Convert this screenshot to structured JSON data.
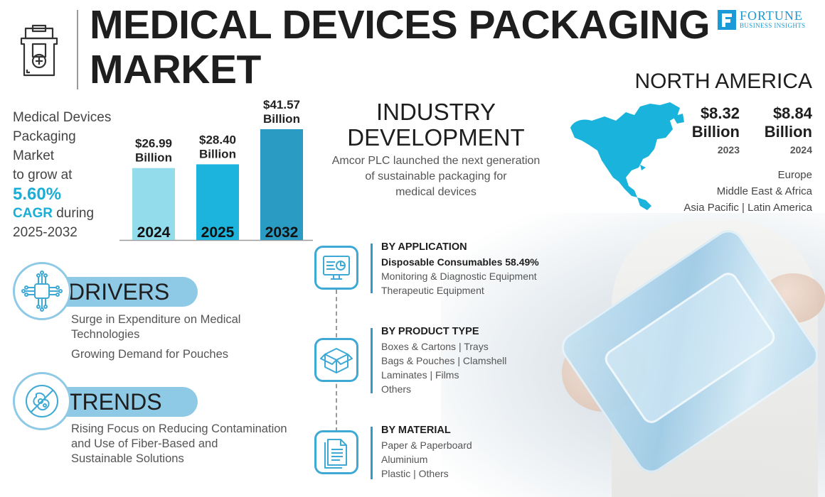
{
  "header": {
    "title_line1": "MEDICAL DEVICES PACKAGING",
    "title_line2": "MARKET",
    "brand_name": "FORTUNE",
    "brand_sub": "BUSINESS INSIGHTS"
  },
  "growth": {
    "line1": "Medical Devices",
    "line2": "Packaging",
    "line3": "Market",
    "line4": "to grow at",
    "cagr_value": "5.60%",
    "cagr_label": "CAGR",
    "line_during": " during",
    "period": "2025-2032"
  },
  "chart_data": {
    "type": "bar",
    "categories": [
      "2024",
      "2025",
      "2032"
    ],
    "values": [
      26.99,
      28.4,
      41.57
    ],
    "value_labels_line1": [
      "$26.99",
      "$28.40",
      "$41.57"
    ],
    "value_labels_line2": [
      "Billion",
      "Billion",
      "Billion"
    ],
    "unit": "USD Billion",
    "colors": [
      "#92dceb",
      "#1cb3dc",
      "#2a9cc4"
    ]
  },
  "industry": {
    "title_line1": "INDUSTRY",
    "title_line2": "DEVELOPMENT",
    "text_line1": "Amcor PLC launched the next generation",
    "text_line2": "of sustainable packaging for",
    "text_line3": "medical devices"
  },
  "north_america": {
    "title": "NORTH AMERICA",
    "value1": "$8.32",
    "value1_unit": "Billion",
    "year1": "2023",
    "value2": "$8.84",
    "value2_unit": "Billion",
    "year2": "2024",
    "region1": "Europe",
    "region2": "Middle East & Africa",
    "region3": "Asia Pacific  |  Latin America",
    "map_color": "#1ab3dc"
  },
  "drivers": {
    "title": "DRIVERS",
    "item1_line1": "Surge in Expenditure on Medical",
    "item1_line2": "Technologies",
    "item2": "Growing Demand for Pouches"
  },
  "trends": {
    "title": "TRENDS",
    "line1": "Rising Focus on Reducing Contamination",
    "line2": "and Use of Fiber-Based and",
    "line3": "Sustainable Solutions"
  },
  "segments": {
    "application": {
      "heading": "BY APPLICATION",
      "lines": [
        "Disposable Consumables 58.49%",
        "Monitoring & Diagnostic Equipment",
        "Therapeutic Equipment"
      ]
    },
    "product": {
      "heading": "BY PRODUCT TYPE",
      "lines": [
        "Boxes & Cartons  |  Trays",
        "Bags & Pouches  |  Clamshell",
        "Laminates  |  Films",
        "Others"
      ]
    },
    "material": {
      "heading": "BY MATERIAL",
      "lines": [
        "Paper & Paperboard",
        "Aluminium",
        "Plastic  |  Others"
      ]
    }
  },
  "colors": {
    "accent": "#1aaed6",
    "pill": "#8ec9e6",
    "segment_blue": "#2b9bd0"
  }
}
